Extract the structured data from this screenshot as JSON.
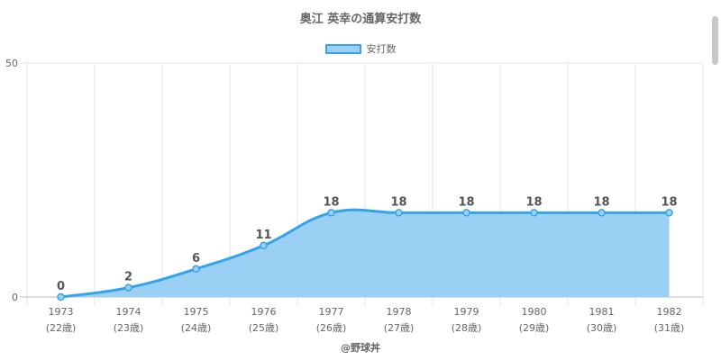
{
  "chart_data": {
    "type": "area",
    "title": "奥江 英幸の通算安打数",
    "categories": [
      "1973",
      "1974",
      "1975",
      "1976",
      "1977",
      "1978",
      "1979",
      "1980",
      "1981",
      "1982"
    ],
    "age_labels": [
      "(22歳)",
      "(23歳)",
      "(24歳)",
      "(25歳)",
      "(26歳)",
      "(27歳)",
      "(28歳)",
      "(29歳)",
      "(30歳)",
      "(31歳)"
    ],
    "series": [
      {
        "name": "安打数",
        "values": [
          0,
          2,
          6,
          11,
          18,
          18,
          18,
          18,
          18,
          18
        ]
      }
    ],
    "y_ticks": [
      "50",
      "0"
    ],
    "ylim": [
      0,
      50
    ],
    "grid": true,
    "legend_position": "top",
    "colors": {
      "line": "#36a2eb",
      "fill": "#9bd0f5"
    }
  },
  "credit": "@野球丼"
}
